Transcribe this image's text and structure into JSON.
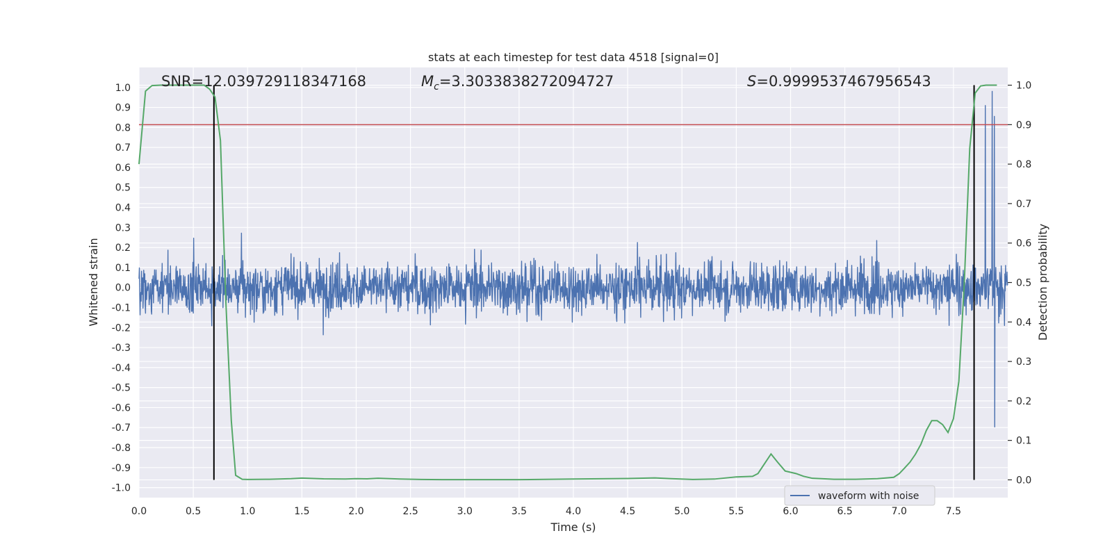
{
  "chart_data": {
    "type": "line",
    "title": "stats at each timestep for test data 4518 [signal=0]",
    "xlabel": "Time (s)",
    "ylabel_left": "Whitened strain",
    "ylabel_right": "Detection probability",
    "xlim": [
      0.0,
      8.0
    ],
    "ylim_left": [
      -1.05,
      1.1
    ],
    "ylim_right": [
      -0.045,
      1.045
    ],
    "x_ticks": [
      "0.0",
      "0.5",
      "1.0",
      "1.5",
      "2.0",
      "2.5",
      "3.0",
      "3.5",
      "4.0",
      "4.5",
      "5.0",
      "5.5",
      "6.0",
      "6.5",
      "7.0",
      "7.5"
    ],
    "y_ticks_left": [
      "1.0",
      "0.9",
      "0.8",
      "0.7",
      "0.6",
      "0.5",
      "0.4",
      "0.3",
      "0.2",
      "0.1",
      "0.0",
      "-0.1",
      "-0.2",
      "-0.3",
      "-0.4",
      "-0.5",
      "-0.6",
      "-0.7",
      "-0.8",
      "-0.9",
      "-1.0"
    ],
    "y_ticks_right": [
      "1.0",
      "0.9",
      "0.8",
      "0.7",
      "0.6",
      "0.5",
      "0.4",
      "0.3",
      "0.2",
      "0.1",
      "0.0"
    ],
    "grid": true,
    "legend_placement": "bottom-right",
    "annotations": {
      "snr_label": "SNR=12.039729118347168",
      "mc_symbol": "M",
      "mc_subscript": "c",
      "mc_value": "=3.3033838272094727",
      "s_symbol": "S",
      "s_value": "=0.9999537467956543"
    },
    "threshold_line": {
      "axis": "right",
      "y": 0.9,
      "color": "#c44e52"
    },
    "vertical_lines": [
      {
        "x": 0.69,
        "color": "#000000"
      },
      {
        "x": 7.69,
        "color": "#000000"
      }
    ],
    "series": [
      {
        "name": "waveform with noise",
        "axis": "left",
        "color": "#4c72b0",
        "envelope": "dense noisy strain, core band roughly ±0.25, peaks up to about ±0.55 with spikes near 7.8-7.9 s reaching ±1.0"
      },
      {
        "axis": "right",
        "color": "#55a868",
        "x": [
          0.0,
          0.06,
          0.12,
          0.2,
          0.3,
          0.4,
          0.5,
          0.6,
          0.65,
          0.7,
          0.75,
          0.8,
          0.85,
          0.89,
          0.95,
          1.0,
          1.2,
          1.4,
          1.5,
          1.7,
          1.9,
          2.0,
          2.1,
          2.2,
          2.4,
          2.6,
          2.8,
          3.0,
          3.5,
          4.0,
          4.5,
          4.75,
          4.9,
          5.1,
          5.3,
          5.5,
          5.65,
          5.7,
          5.82,
          5.88,
          5.95,
          6.05,
          6.12,
          6.2,
          6.4,
          6.6,
          6.8,
          6.95,
          7.0,
          7.05,
          7.1,
          7.15,
          7.2,
          7.25,
          7.3,
          7.35,
          7.4,
          7.45,
          7.5,
          7.55,
          7.6,
          7.65,
          7.7,
          7.75,
          7.8,
          7.85,
          7.9
        ],
        "y": [
          0.8,
          0.985,
          0.999,
          1.0,
          1.0,
          1.0,
          1.0,
          1.0,
          0.99,
          0.97,
          0.86,
          0.45,
          0.15,
          0.0115,
          0.0015,
          0.001,
          0.0015,
          0.003,
          0.0045,
          0.0025,
          0.002,
          0.003,
          0.0025,
          0.004,
          0.002,
          0.001,
          0.0005,
          0.0005,
          0.0005,
          0.002,
          0.0035,
          0.005,
          0.003,
          0.001,
          0.002,
          0.0075,
          0.009,
          0.016,
          0.0655,
          0.045,
          0.0225,
          0.016,
          0.009,
          0.004,
          0.0015,
          0.0015,
          0.003,
          0.0065,
          0.0155,
          0.03,
          0.045,
          0.065,
          0.09,
          0.125,
          0.15,
          0.15,
          0.14,
          0.12,
          0.155,
          0.25,
          0.5,
          0.84,
          0.98,
          0.998,
          1.0,
          1.0,
          1.0
        ]
      }
    ]
  }
}
